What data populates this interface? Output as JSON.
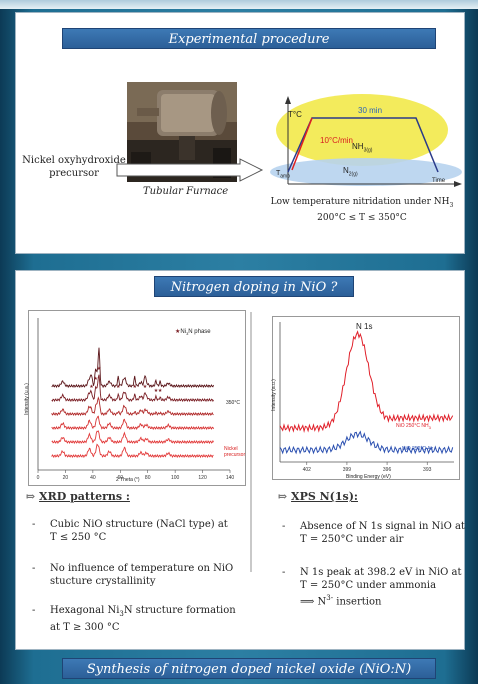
{
  "section1": {
    "title": "Experimental procedure",
    "precursor_line1": "Nickel oxyhydroxide",
    "precursor_line2": "precursor",
    "furnace_caption": "Tubular Furnace",
    "profile": {
      "t_label": "T°C",
      "hold": "30 min",
      "ramp": "10°C/min",
      "nh3_label": "NH",
      "nh3_sub": "3(g)",
      "n2_label": "N",
      "n2_sub": "2(g)",
      "tamb_label": "T",
      "tamb_sub": "amb",
      "time_label": "Time"
    },
    "caption_line1": "Low temperature nitridation under NH",
    "caption_sub": "3",
    "caption_line2": "200°C ≤ T ≤ 350°C"
  },
  "section2": {
    "title": "Nitrogen doping in NiO ?"
  },
  "section3": {
    "title": "Synthesis of  nitrogen doped nickel oxide (NiO:N)"
  },
  "xrd": {
    "legend_pre": "Ni",
    "legend_sub": "3",
    "legend_post": "N phase",
    "label_350": "350°C",
    "label_precursor_1": "Nickel",
    "label_precursor_2": "precursor",
    "xlabel": "2 Theta (°)",
    "ylabel": "Intensity (u.a.)",
    "heading": "XRD patterns :",
    "bullets": [
      {
        "l1": "Cubic NiO structure (NaCl type) at",
        "l2": "T ≤ 250 °C"
      },
      {
        "l1": "No influence of temperature on NiO",
        "l2": "stucture crystallinity"
      },
      {
        "l1_pre": "Hexagonal Ni",
        "l1_sub": "3",
        "l1_post": "N structure formation",
        "l2": "at  T ≥ 300 °C"
      }
    ]
  },
  "xps": {
    "peak_label": "N 1s",
    "series_nh3_pre": "NiO 250°C NH",
    "series_nh3_sub": "3",
    "series_air": "NiO 250°C Air",
    "xlabel": "Binding Energy (eV)",
    "ylabel": "Intensity (a.u.)",
    "heading": "XPS N(1s):",
    "bullets": [
      {
        "l1": "Absence of  N 1s signal in NiO at",
        "l2": "T = 250°C under air"
      },
      {
        "l1": "N 1s peak at 398.2 eV in NiO at",
        "l2": "T = 250°C under ammonia",
        "l3_pre": "⟹ N",
        "l3_sup": "3-",
        "l3_post": " insertion"
      }
    ]
  },
  "chart_data": [
    {
      "type": "line",
      "title": "",
      "xlabel": "2 Theta (°)",
      "ylabel": "Intensity (u.a.)",
      "xlim": [
        0,
        140
      ],
      "x_ticks": [
        0,
        20,
        40,
        60,
        80,
        100,
        120,
        140
      ],
      "series_count": 6,
      "colors": [
        "#e23a3a",
        "#e23a3a",
        "#d83434",
        "#b02828",
        "#7a1e24",
        "#5a1418"
      ],
      "annotations": [
        "350°C",
        "Nickel precursor"
      ],
      "legend": [
        "Ni3N phase"
      ],
      "grid": false
    },
    {
      "type": "line",
      "title": "",
      "xlabel": "Binding Energy (eV)",
      "ylabel": "Intensity (a.u.)",
      "x_ticks": [
        402,
        399,
        396,
        393
      ],
      "x_reversed": true,
      "series": [
        {
          "name": "NiO 250°C NH3",
          "color": "#e0202a",
          "peak_ev": 398.2
        },
        {
          "name": "NiO 250°C Air",
          "color": "#2a4fb0"
        }
      ],
      "annotations": [
        "N 1s"
      ],
      "grid": false
    }
  ]
}
